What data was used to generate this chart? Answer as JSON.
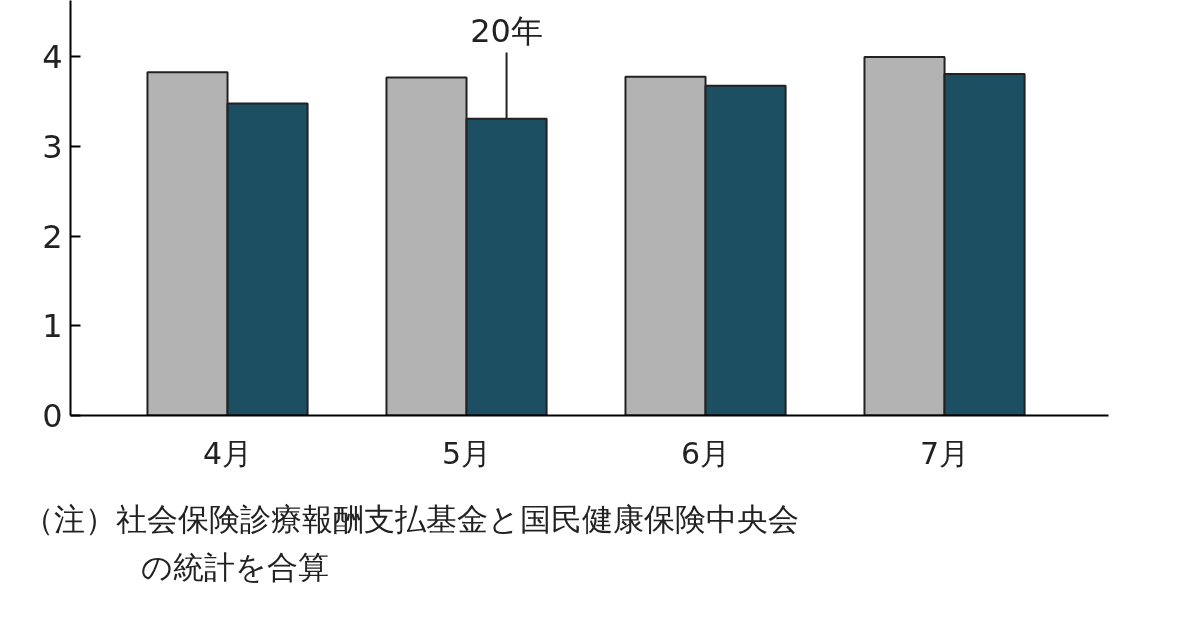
{
  "chart_data": {
    "type": "bar",
    "categories": [
      "4月",
      "5月",
      "6月",
      "7月"
    ],
    "series": [
      {
        "color": "#b3b3b3",
        "values": [
          3.83,
          3.77,
          3.78,
          4.0
        ]
      },
      {
        "color": "#1d4f63",
        "values": [
          3.48,
          3.31,
          3.68,
          3.81
        ]
      }
    ],
    "ylim": [
      0,
      4.63
    ],
    "yticks": [
      0,
      1,
      2,
      3,
      4
    ],
    "grid": false,
    "annotations": [
      {
        "text": "20年",
        "x": "5月",
        "y": 3.31
      },
      "（注）社会保険診療報酬支払基金と国民健康保険中央会の統計を合算"
    ]
  }
}
